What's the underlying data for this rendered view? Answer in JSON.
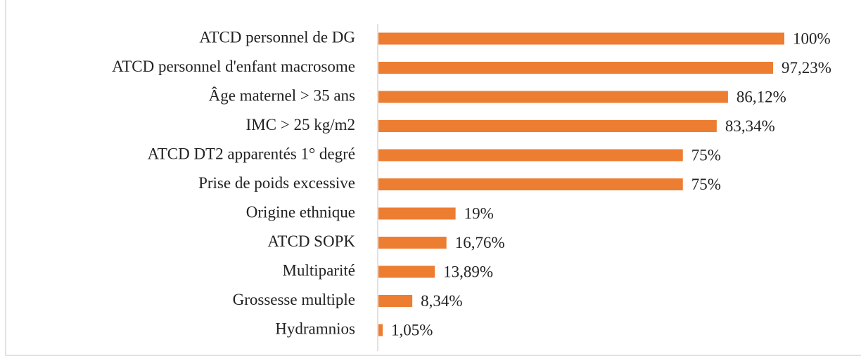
{
  "chart_data": {
    "type": "bar",
    "orientation": "horizontal",
    "color": "#ed7d31",
    "categories": [
      "ATCD personnel de DG",
      "ATCD personnel d'enfant macrosome",
      "Âge maternel > 35 ans",
      "IMC > 25 kg/m2",
      "ATCD DT2 apparentés 1° degré",
      "Prise de poids excessive",
      "Origine ethnique",
      "ATCD SOPK",
      "Multiparité",
      "Grossesse multiple",
      "Hydramnios"
    ],
    "values": [
      100,
      97.23,
      86.12,
      83.34,
      75,
      75,
      19,
      16.76,
      13.89,
      8.34,
      1.05
    ],
    "value_labels": [
      "100%",
      "97,23%",
      "86,12%",
      "83,34%",
      "75%",
      "75%",
      "19%",
      "16,76%",
      "13,89%",
      "8,34%",
      "1,05%"
    ]
  }
}
